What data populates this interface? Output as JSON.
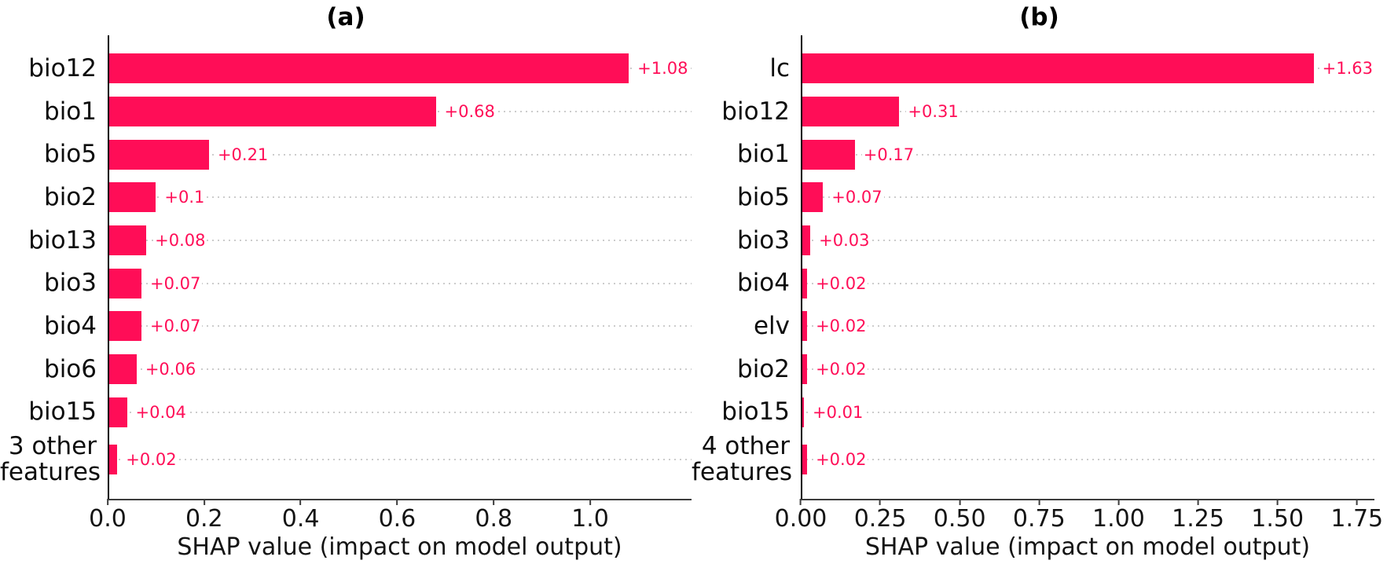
{
  "styles": {
    "bar_color": "#ff0d57",
    "value_label_color": "#ff0d57",
    "grid_color": "#cccccc",
    "axis_color": "#000000",
    "text_color": "#0d0d0d",
    "background_color": "#ffffff"
  },
  "chart_data": [
    {
      "panel": "a",
      "type": "bar",
      "orientation": "horizontal",
      "title": "(a)",
      "xlabel": "SHAP value (impact on model output)",
      "categories": [
        "bio12",
        "bio1",
        "bio5",
        "bio2",
        "bio13",
        "bio3",
        "bio4",
        "bio6",
        "bio15",
        "3 other\nfeatures"
      ],
      "values": [
        1.08,
        0.68,
        0.21,
        0.1,
        0.08,
        0.07,
        0.07,
        0.06,
        0.04,
        0.02
      ],
      "value_labels": [
        "+1.08",
        "+0.68",
        "+0.21",
        "+0.1",
        "+0.08",
        "+0.07",
        "+0.07",
        "+0.06",
        "+0.04",
        "+0.02"
      ],
      "xtick_values": [
        0.0,
        0.2,
        0.4,
        0.6,
        0.8,
        1.0
      ],
      "xtick_labels": [
        "0.0",
        "0.2",
        "0.4",
        "0.6",
        "0.8",
        "1.0"
      ],
      "xlim": [
        0,
        1.21
      ],
      "bar_color": "#ff0d57",
      "grid": "horizontal dotted gridlines per feature row",
      "legend_position": "none"
    },
    {
      "panel": "b",
      "type": "bar",
      "orientation": "horizontal",
      "title": "(b)",
      "xlabel": "SHAP value (impact on model output)",
      "categories": [
        "lc",
        "bio12",
        "bio1",
        "bio5",
        "bio3",
        "bio4",
        "elv",
        "bio2",
        "bio15",
        "4 other\nfeatures"
      ],
      "values": [
        1.63,
        0.31,
        0.17,
        0.07,
        0.03,
        0.02,
        0.02,
        0.02,
        0.01,
        0.02
      ],
      "value_labels": [
        "+1.63",
        "+0.31",
        "+0.17",
        "+0.07",
        "+0.03",
        "+0.02",
        "+0.02",
        "+0.02",
        "+0.01",
        "+0.02"
      ],
      "xtick_values": [
        0.0,
        0.25,
        0.5,
        0.75,
        1.0,
        1.25,
        1.5,
        1.75
      ],
      "xtick_labels": [
        "0.00",
        "0.25",
        "0.50",
        "0.75",
        "1.00",
        "1.25",
        "1.50",
        "1.75"
      ],
      "xlim": [
        0,
        1.805
      ],
      "bar_color": "#ff0d57",
      "grid": "horizontal dotted gridlines per feature row",
      "legend_position": "none"
    }
  ]
}
